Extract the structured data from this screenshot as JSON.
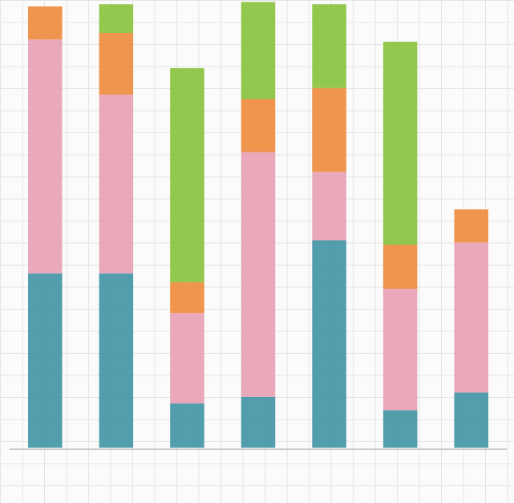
{
  "chart_data": {
    "type": "stacked_bar",
    "categories": [
      null,
      null,
      null,
      null,
      null,
      null,
      null
    ],
    "series": [
      {
        "color": "#3f93a3",
        "values": [
          7.9,
          7.9,
          2.0,
          2.3,
          9.4,
          1.7,
          2.5
        ]
      },
      {
        "color": "#e8a0b4",
        "values": [
          10.6,
          8.1,
          4.1,
          11.1,
          3.1,
          5.5,
          6.8
        ]
      },
      {
        "color": "#ee8a3a",
        "values": [
          1.5,
          2.8,
          1.4,
          2.4,
          3.8,
          2.0,
          1.5
        ]
      },
      {
        "color": "#86c23a",
        "values": [
          0,
          1.3,
          9.7,
          4.4,
          3.8,
          9.2,
          0
        ]
      }
    ],
    "ylim": [
      0,
      20
    ],
    "grid": true
  }
}
